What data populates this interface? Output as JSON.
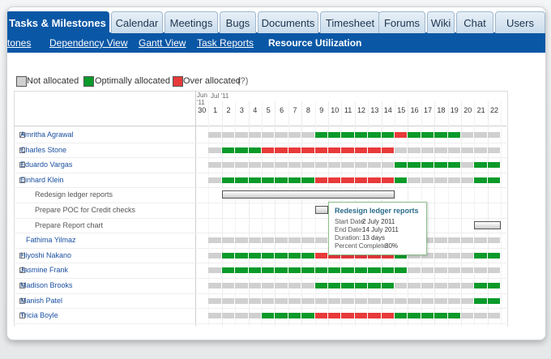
{
  "tabs": [
    "Tasks & Milestones",
    "Calendar",
    "Meetings",
    "Bugs",
    "Documents",
    "Timesheet",
    "Forums",
    "Wiki",
    "Chat",
    "Users"
  ],
  "subtabs": [
    "stones",
    "Dependency View",
    "Gantt View",
    "Task Reports",
    "Resource Utilization"
  ],
  "legend": [
    {
      "label": "Not allocated",
      "color": "#d0d0d0"
    },
    {
      "label": "Optimally allocated",
      "color": "#0a9a2a"
    },
    {
      "label": "Over allocated",
      "color": "#e83a3a"
    }
  ],
  "legend_help": "(?)",
  "months": [
    "Jun\n'11",
    "Jul '11"
  ],
  "days": [
    "30",
    "1",
    "2",
    "3",
    "4",
    "5",
    "6",
    "7",
    "8",
    "9",
    "10",
    "11",
    "12",
    "13",
    "14",
    "15",
    "16",
    "17",
    "18",
    "19",
    "20",
    "21",
    "22"
  ],
  "rows": [
    {
      "label": "Amritha Agrawal",
      "kind": "person",
      "cells": ".nnnnnnnnggggggrggggnnn"
    },
    {
      "label": "Charles Stone",
      "kind": "person",
      "cells": ".ngggrrrrrrrrrrnnnnnnnn"
    },
    {
      "label": "Eduardo Vargas",
      "kind": "person",
      "cells": ".nnnnnnnnnnnnnngggggngg"
    },
    {
      "label": "Einhard Klein",
      "kind": "open",
      "cells": ".ngggggggrrrrrrgnnnnngg"
    },
    {
      "label": "Redesign ledger reports",
      "kind": "task",
      "cells": "..bbbbbbbbbbbbb........"
    },
    {
      "label": "Prepare POC for Credit checks",
      "kind": "task",
      "cells": ".........b............."
    },
    {
      "label": "Prepare Report chart",
      "kind": "task",
      "cells": ".....................bb"
    },
    {
      "label": "Fathima Yilmaz",
      "kind": "plain",
      "cells": ".nnnnnnnnnnnnnnnnnnnnnn"
    },
    {
      "label": "Hiyoshi Nakano",
      "kind": "person",
      "cells": ".ngggggggrrrrrrgnnnnngg"
    },
    {
      "label": "Jasmine Frank",
      "kind": "person",
      "cells": ".nggggggggggggggnnnnnnn"
    },
    {
      "label": "Madison Brooks",
      "kind": "person",
      "cells": ".nnnnnnnnggggggnnnnnngg"
    },
    {
      "label": "Manish Patel",
      "kind": "person",
      "cells": ".nnnnnnnnnnnnnnnnnnnngg"
    },
    {
      "label": "Tricia Boyle",
      "kind": "person",
      "cells": ".nnnnggggrrrrrrgggggnnn"
    }
  ],
  "tooltip": {
    "title": "Redesign ledger reports",
    "lines": [
      [
        "Start Date:",
        "2 July 2011"
      ],
      [
        "End Date:",
        "14 July 2011"
      ],
      [
        "Duration:",
        "13 days"
      ],
      [
        "Percent Complete:",
        "30%"
      ]
    ]
  }
}
